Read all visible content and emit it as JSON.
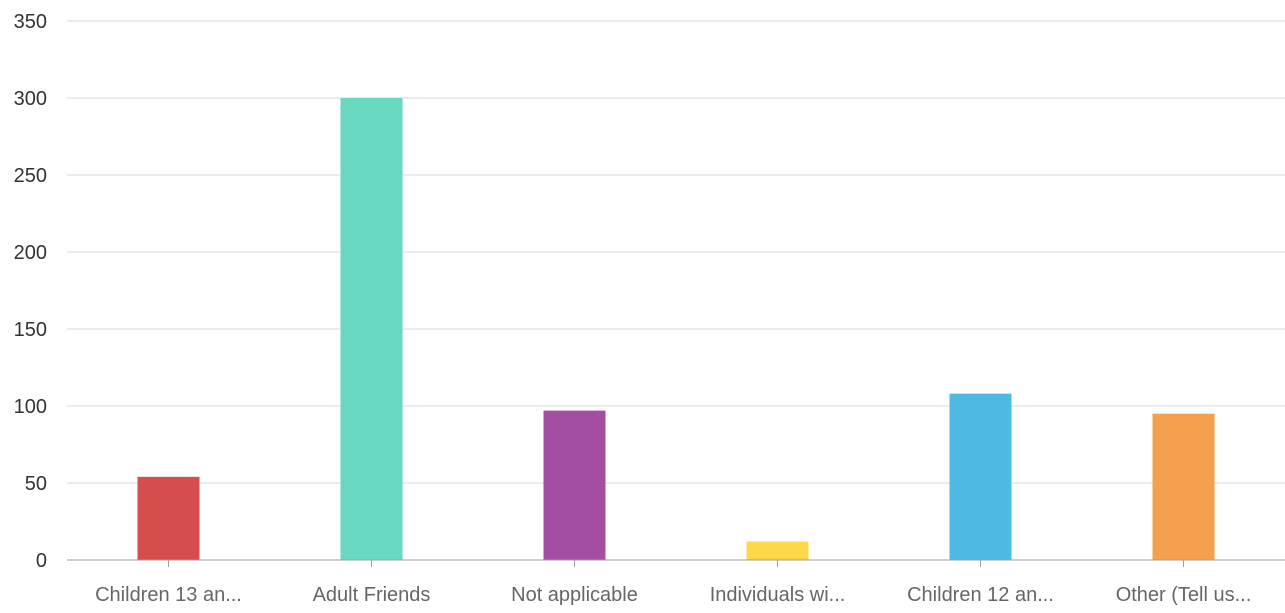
{
  "chart_data": {
    "type": "bar",
    "categories": [
      "Children 13 an...",
      "Adult Friends",
      "Not applicable",
      "Individuals wi...",
      "Children 12 an...",
      "Other (Tell us..."
    ],
    "values": [
      54,
      300,
      97,
      12,
      108,
      95
    ],
    "colors": [
      "#d54d4d",
      "#6ad7c0",
      "#a34ea1",
      "#fdd74a",
      "#4cbae2",
      "#f5a04e"
    ],
    "ylim": [
      0,
      350
    ],
    "yticks": [
      0,
      50,
      100,
      150,
      200,
      250,
      300,
      350
    ],
    "grid": true,
    "title": "",
    "xlabel": "",
    "ylabel": ""
  }
}
